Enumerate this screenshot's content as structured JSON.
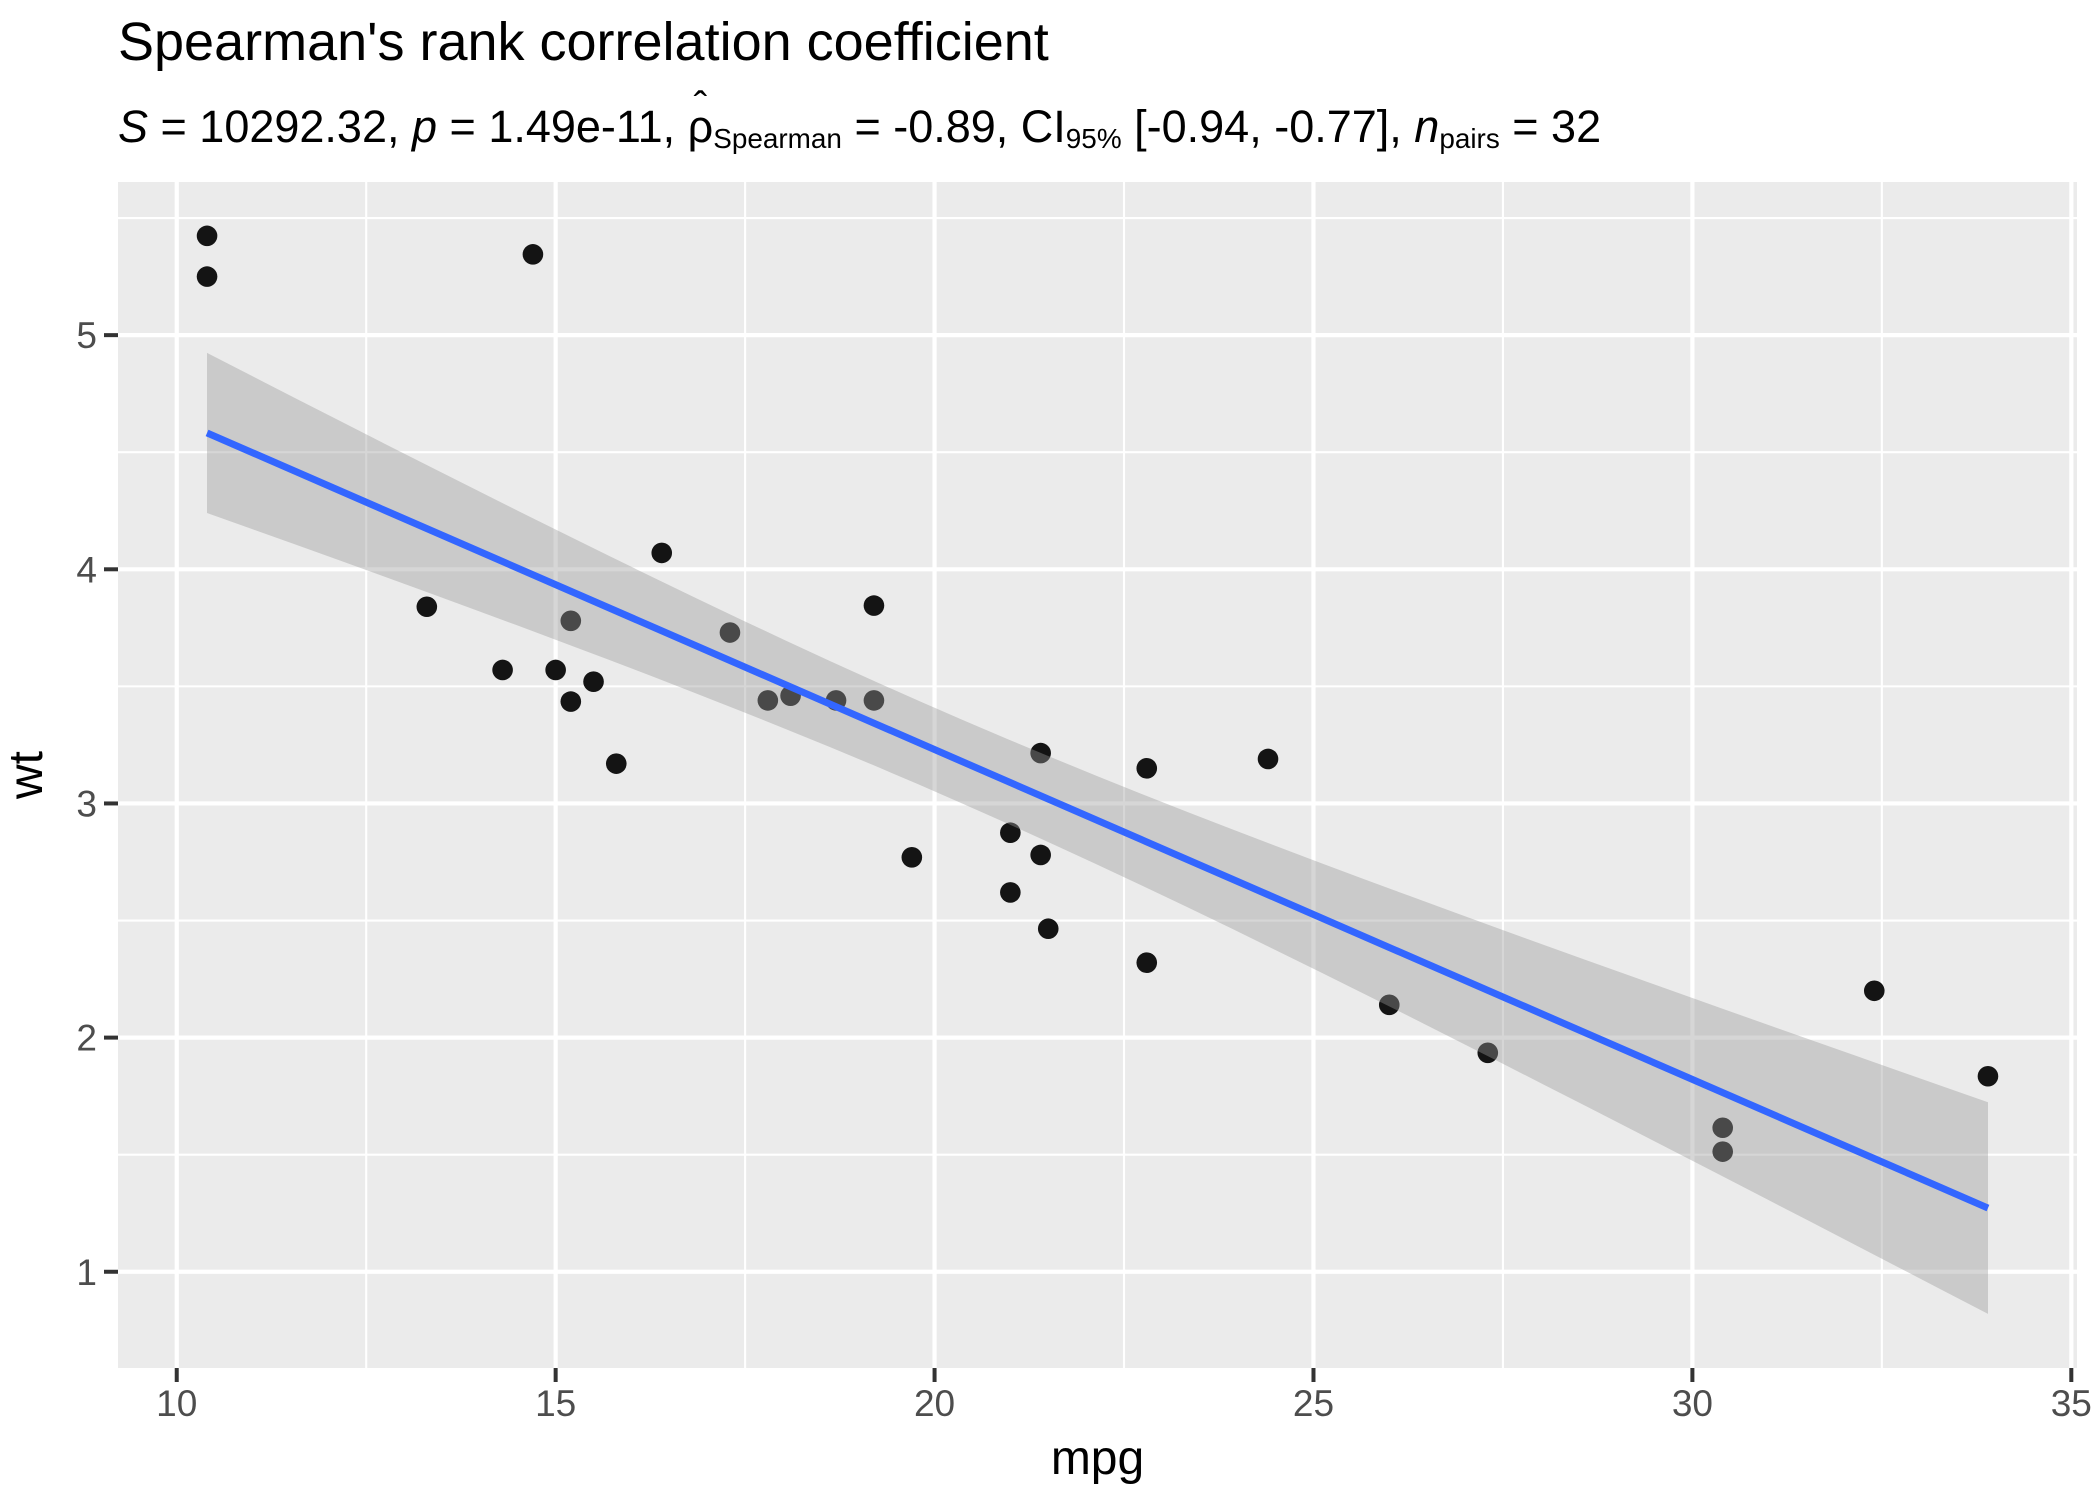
{
  "title": "Spearman's rank correlation coefficient",
  "subtitle": {
    "s_var": "S",
    "s_rest": " = 10292.32, ",
    "p_var": "p",
    "p_rest": " = 1.49e-11, ",
    "hat": "ˆ",
    "rho": "ρ",
    "rho_sub": "Spearman",
    "rho_rest": " = -0.89, ",
    "ci_label": "CI",
    "ci_sub": "95%",
    "ci_rest": " [-0.94, -0.77], ",
    "n_var": "n",
    "n_sub": "pairs",
    "n_rest": " = 32"
  },
  "chart_data": {
    "type": "scatter",
    "title": "Spearman's rank correlation coefficient",
    "xlabel": "mpg",
    "ylabel": "wt",
    "x_ticks": [
      10,
      15,
      20,
      25,
      30,
      35
    ],
    "y_ticks": [
      1,
      2,
      3,
      4,
      5
    ],
    "x_minor_ticks": [
      12.5,
      17.5,
      22.5,
      27.5,
      32.5
    ],
    "y_minor_ticks": [
      1.5,
      2.5,
      3.5,
      4.5,
      5.5
    ],
    "xlim": [
      9.225,
      35.075
    ],
    "ylim": [
      0.589,
      5.654
    ],
    "grid": true,
    "legend": false,
    "n_pairs": 32,
    "points": [
      [
        21.0,
        2.62
      ],
      [
        21.0,
        2.875
      ],
      [
        22.8,
        2.32
      ],
      [
        21.4,
        3.215
      ],
      [
        18.7,
        3.44
      ],
      [
        18.1,
        3.46
      ],
      [
        14.3,
        3.57
      ],
      [
        24.4,
        3.19
      ],
      [
        22.8,
        3.15
      ],
      [
        19.2,
        3.44
      ],
      [
        17.8,
        3.44
      ],
      [
        16.4,
        4.07
      ],
      [
        17.3,
        3.73
      ],
      [
        15.2,
        3.78
      ],
      [
        10.4,
        5.25
      ],
      [
        10.4,
        5.424
      ],
      [
        14.7,
        5.345
      ],
      [
        32.4,
        2.2
      ],
      [
        30.4,
        1.615
      ],
      [
        33.9,
        1.835
      ],
      [
        21.5,
        2.465
      ],
      [
        15.5,
        3.52
      ],
      [
        15.2,
        3.435
      ],
      [
        13.3,
        3.84
      ],
      [
        19.2,
        3.845
      ],
      [
        27.3,
        1.935
      ],
      [
        26.0,
        2.14
      ],
      [
        30.4,
        1.513
      ],
      [
        15.8,
        3.17
      ],
      [
        19.7,
        2.77
      ],
      [
        15.0,
        3.57
      ],
      [
        21.4,
        2.78
      ]
    ],
    "trend_line": {
      "type": "lm",
      "intercept": 6.0473,
      "slope": -0.14086,
      "x_start": 10.4,
      "x_end": 33.9
    },
    "ci_ribbon": {
      "level": 0.95,
      "t_times_s": 1.0096,
      "n": 32,
      "mean_x": 20.0906,
      "sxx": 1126.047
    },
    "stats": {
      "S": "10292.32",
      "p": "1.49e-11",
      "rho_spearman": -0.89,
      "ci_95": [
        -0.94,
        -0.77
      ],
      "n_pairs": 32
    },
    "colors": {
      "panel": "#EBEBEB",
      "grid": "#FFFFFF",
      "point": "#141414",
      "line": "#3366FF",
      "ribbon": "#999999",
      "ribbon_opacity": 0.4,
      "tick": "#333333",
      "tick_label": "#4D4D4D",
      "axis_title": "#000000"
    }
  }
}
